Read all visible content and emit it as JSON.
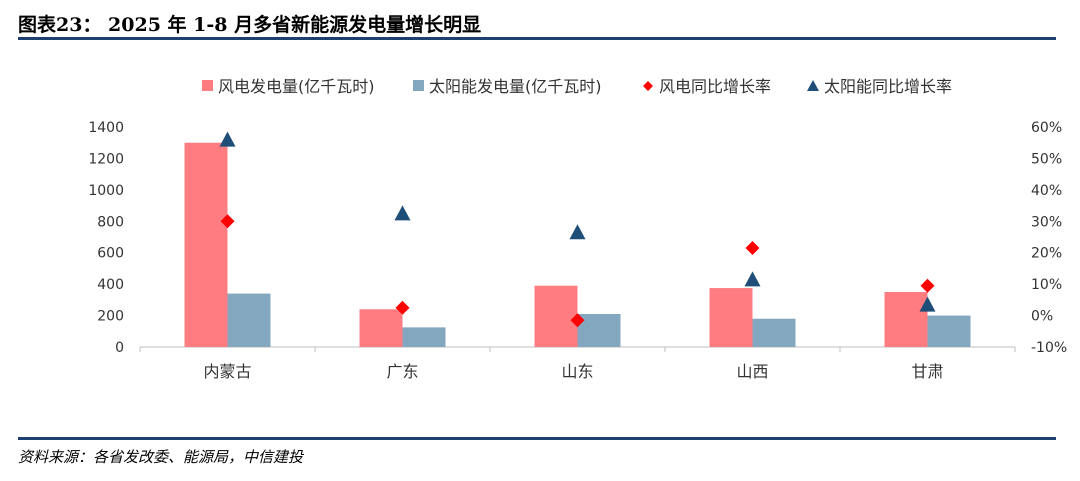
{
  "header": {
    "title": "图表23：  2025 年 1-8 月多省新能源发电量增长明显"
  },
  "footer": {
    "source": "资料来源：各省发改委、能源局，中信建投"
  },
  "chart_data": {
    "type": "bar",
    "categories": [
      "内蒙古",
      "广东",
      "山东",
      "山西",
      "甘肃"
    ],
    "series": [
      {
        "name": "风电发电量(亿千瓦时)",
        "kind": "bar",
        "axis": "left",
        "color": "#ff7c80",
        "values": [
          1300,
          240,
          390,
          375,
          350
        ]
      },
      {
        "name": "太阳能发电量(亿千瓦时)",
        "kind": "bar",
        "axis": "left",
        "color": "#84a7c0",
        "values": [
          340,
          125,
          210,
          180,
          200
        ]
      },
      {
        "name": "风电同比增长率",
        "kind": "marker-diamond",
        "axis": "right",
        "color": "#ff0000",
        "values": [
          30,
          2.5,
          -1.5,
          21.5,
          9.5
        ]
      },
      {
        "name": "太阳能同比增长率",
        "kind": "marker-triangle",
        "axis": "right",
        "color": "#1f4e79",
        "values": [
          56,
          32.5,
          26.5,
          11.5,
          3.5
        ]
      }
    ],
    "y_left": {
      "min": 0,
      "max": 1400,
      "step": 200,
      "ticks": [
        "0",
        "200",
        "400",
        "600",
        "800",
        "1000",
        "1200",
        "1400"
      ]
    },
    "y_right": {
      "min": -10,
      "max": 60,
      "step": 10,
      "ticks": [
        "-10%",
        "0%",
        "10%",
        "20%",
        "30%",
        "40%",
        "50%",
        "60%"
      ]
    },
    "legend": "top",
    "grid": false
  }
}
